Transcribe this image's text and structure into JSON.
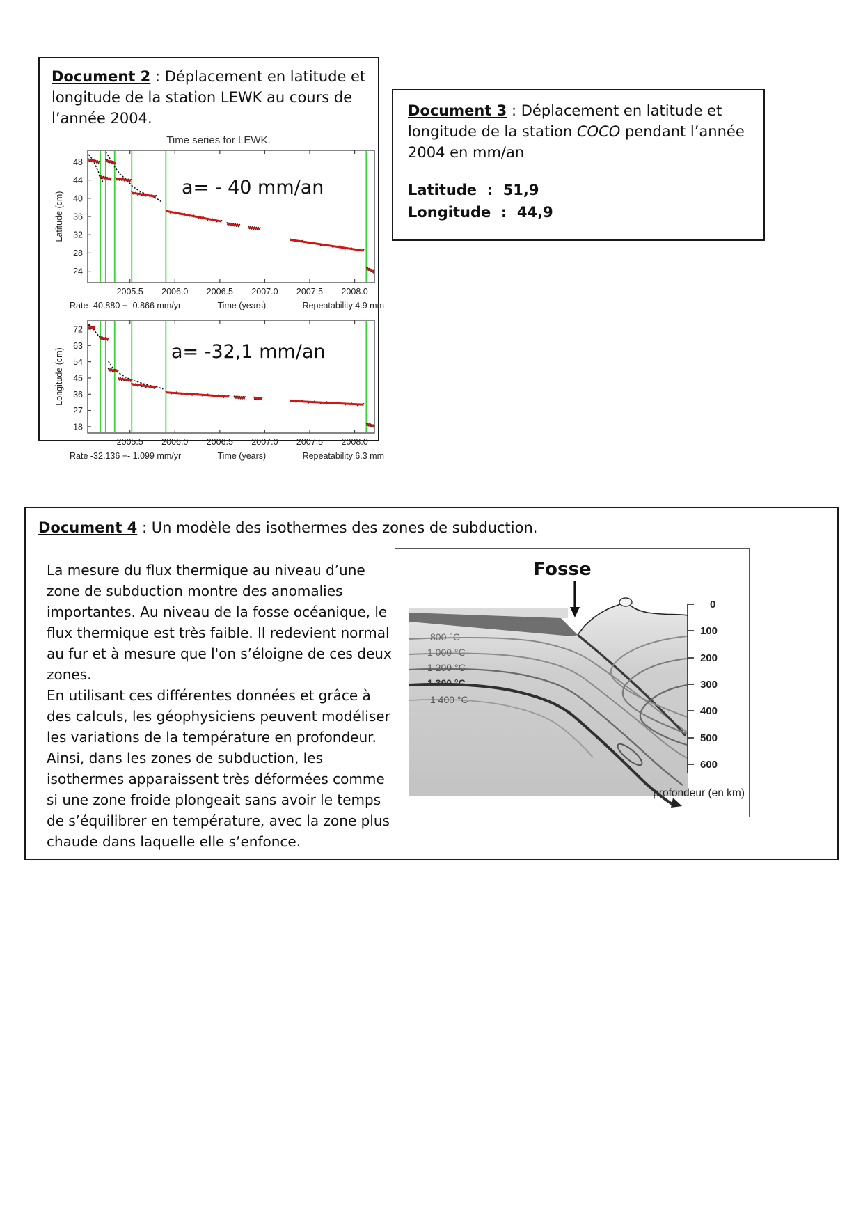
{
  "doc2": {
    "title_label": "Document 2",
    "title_rest": " : Déplacement en latitude et longitude de la station LEWK au cours de l’année 2004."
  },
  "doc3": {
    "title_label": "Document 3",
    "title_rest_1": " : Déplacement en latitude et longitude de la station ",
    "station": "COCO",
    "title_rest_2": " pendant l’année 2004 en mm/an",
    "latitude_line": "Latitude  :  51,9",
    "longitude_line": "Longitude  :  44,9"
  },
  "doc4": {
    "title_label": "Document 4",
    "title_rest": " : Un modèle des isothermes des zones de subduction.",
    "paragraph_1": "La mesure du flux thermique au niveau d’une zone de subduction montre des anomalies importantes. Au niveau de la fosse océanique, le flux thermique est très faible. Il redevient normal au fur et à mesure que l'on s’éloigne de ces deux zones.",
    "paragraph_2": "En utilisant ces différentes données et grâce à des calculs, les géophysiciens peuvent modéliser les variations de la température en profondeur. Ainsi, dans les zones de subduction, les isothermes apparaissent très déformées comme si une zone froide plongeait sans avoir le temps de s’équilibrer en température, avec la zone plus chaude dans laquelle elle s’enfonce."
  },
  "diagram": {
    "fosse_label": "Fosse",
    "isotherm_labels": [
      "800 °C",
      "1 000 °C",
      "1 200 °C",
      "1 300 °C",
      "1 400 °C"
    ],
    "depth_ticks": [
      "0",
      "100",
      "200",
      "300",
      "400",
      "500",
      "600"
    ],
    "depth_axis_label": "profondeur (en km)"
  },
  "chart_data": [
    {
      "type": "scatter",
      "title": "Time series for LEWK.",
      "ylabel": "Latitude (cm)",
      "xlabel": "Time (years)",
      "annotation": "a= - 40 mm/an",
      "rate_text": "Rate -40.880 +- 0.866 mm/yr",
      "repeatability_text": "Repeatability 4.9 mm",
      "xlim": [
        2005.03,
        2008.22
      ],
      "ylim": [
        21.5,
        50.5
      ],
      "xticks": [
        "2005.5",
        "2006.0",
        "2006.5",
        "2007.0",
        "2007.5",
        "2008.0"
      ],
      "yticks": [
        24,
        28,
        32,
        36,
        40,
        44,
        48
      ],
      "green_line_color": "#35d435",
      "trend_color": "#d31414",
      "green_lines": [
        2005.17,
        2005.23,
        2005.33,
        2005.52,
        2005.9,
        2008.13
      ],
      "red_segments": [
        [
          [
            2005.04,
            48.4
          ],
          [
            2005.16,
            47.9
          ]
        ],
        [
          [
            2005.16,
            44.7
          ],
          [
            2005.29,
            44.2
          ]
        ],
        [
          [
            2005.23,
            48.3
          ],
          [
            2005.34,
            47.7
          ]
        ],
        [
          [
            2005.34,
            44.3
          ],
          [
            2005.51,
            43.9
          ]
        ],
        [
          [
            2005.52,
            41.2
          ],
          [
            2005.79,
            40.4
          ]
        ],
        [
          [
            2005.9,
            37.2
          ],
          [
            2006.52,
            34.9
          ]
        ],
        [
          [
            2006.58,
            34.4
          ],
          [
            2006.72,
            34.0
          ]
        ],
        [
          [
            2006.82,
            33.6
          ],
          [
            2006.95,
            33.3
          ]
        ],
        [
          [
            2007.28,
            30.9
          ],
          [
            2008.1,
            28.5
          ]
        ],
        [
          [
            2008.13,
            24.7
          ],
          [
            2008.22,
            23.8
          ]
        ]
      ],
      "black_curves": [
        [
          [
            2005.04,
            49.6
          ],
          [
            2005.09,
            48.4
          ],
          [
            2005.13,
            46.6
          ],
          [
            2005.17,
            44.9
          ],
          [
            2005.2,
            43.4
          ]
        ],
        [
          [
            2005.23,
            50.2
          ],
          [
            2005.28,
            48.6
          ],
          [
            2005.33,
            46.9
          ],
          [
            2005.39,
            45.3
          ],
          [
            2005.46,
            44.1
          ],
          [
            2005.53,
            42.6
          ],
          [
            2005.62,
            41.4
          ],
          [
            2005.72,
            40.6
          ],
          [
            2005.81,
            39.8
          ],
          [
            2005.86,
            39.1
          ]
        ]
      ]
    },
    {
      "type": "scatter",
      "title": "Time series for LEWK.",
      "ylabel": "Longitude (cm)",
      "xlabel": "Time (years)",
      "annotation": "a= -32,1 mm/an",
      "rate_text": "Rate -32.136 +- 1.099 mm/yr",
      "repeatability_text": "Repeatability 6.3 mm",
      "xlim": [
        2005.03,
        2008.22
      ],
      "ylim": [
        14.5,
        77
      ],
      "xticks": [
        "2005.5",
        "2006.0",
        "2006.5",
        "2007.0",
        "2007.5",
        "2008.0"
      ],
      "yticks": [
        18,
        27,
        36,
        45,
        54,
        63,
        72
      ],
      "green_line_color": "#35d435",
      "trend_color": "#d31414",
      "green_lines": [
        2005.17,
        2005.23,
        2005.33,
        2005.52,
        2005.9,
        2008.13
      ],
      "red_segments": [
        [
          [
            2005.04,
            73.4
          ],
          [
            2005.11,
            72.6
          ]
        ],
        [
          [
            2005.16,
            67.4
          ],
          [
            2005.26,
            66.4
          ]
        ],
        [
          [
            2005.26,
            49.6
          ],
          [
            2005.37,
            48.8
          ]
        ],
        [
          [
            2005.37,
            44.6
          ],
          [
            2005.52,
            43.7
          ]
        ],
        [
          [
            2005.52,
            41.6
          ],
          [
            2005.79,
            39.7
          ]
        ],
        [
          [
            2005.9,
            37.0
          ],
          [
            2006.6,
            34.6
          ]
        ],
        [
          [
            2006.66,
            34.3
          ],
          [
            2006.78,
            34.0
          ]
        ],
        [
          [
            2006.88,
            33.8
          ],
          [
            2006.97,
            33.6
          ]
        ],
        [
          [
            2007.28,
            32.3
          ],
          [
            2008.1,
            30.2
          ]
        ],
        [
          [
            2008.13,
            19.4
          ],
          [
            2008.22,
            18.3
          ]
        ]
      ],
      "black_curves": [
        [
          [
            2005.04,
            74.8
          ],
          [
            2005.09,
            72.4
          ],
          [
            2005.13,
            69.5
          ],
          [
            2005.17,
            67.5
          ]
        ],
        [
          [
            2005.26,
            54.2
          ],
          [
            2005.31,
            50.5
          ],
          [
            2005.38,
            47.6
          ],
          [
            2005.46,
            45.2
          ],
          [
            2005.56,
            43.2
          ],
          [
            2005.68,
            41.4
          ],
          [
            2005.8,
            40.0
          ],
          [
            2005.87,
            38.9
          ]
        ]
      ]
    }
  ]
}
